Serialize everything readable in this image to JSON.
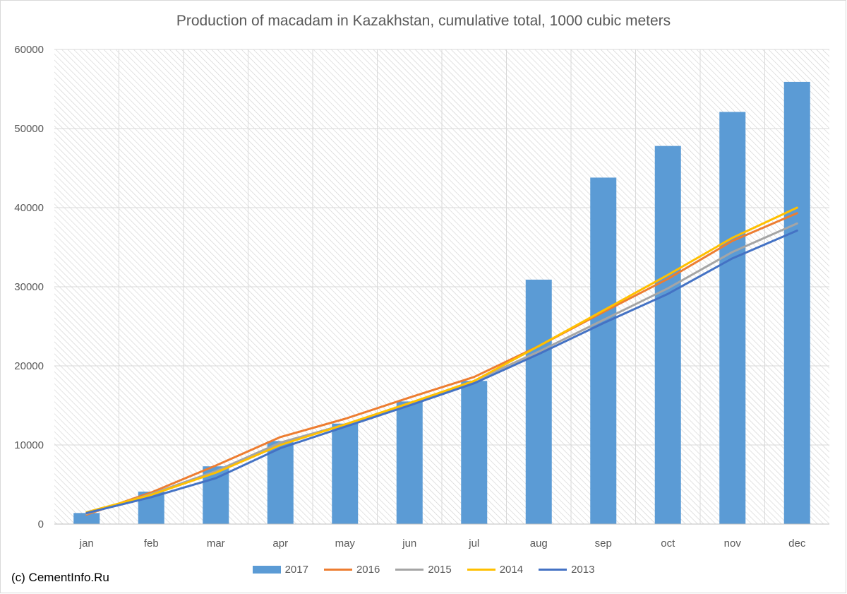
{
  "chart_data": {
    "type": "bar",
    "title": "Production of macadam in Kazakhstan, cumulative total, 1000 cubic meters",
    "categories": [
      "jan",
      "feb",
      "mar",
      "apr",
      "may",
      "jun",
      "jul",
      "aug",
      "sep",
      "oct",
      "nov",
      "dec"
    ],
    "ylim": [
      0,
      60000
    ],
    "yticks": [
      0,
      10000,
      20000,
      30000,
      40000,
      50000,
      60000
    ],
    "ytick_labels": [
      "0",
      "10000",
      "20000",
      "30000",
      "40000",
      "50000",
      "60000"
    ],
    "grid": true,
    "legend_position": "bottom",
    "bar_series": {
      "name": "2017",
      "color": "#5b9bd5",
      "values": [
        1400,
        4100,
        7300,
        10500,
        12700,
        15500,
        18100,
        30900,
        43800,
        47800,
        52100,
        55900
      ]
    },
    "line_series": [
      {
        "name": "2016",
        "color": "#ed7d31",
        "values": [
          1200,
          4000,
          7400,
          11000,
          13300,
          16000,
          18600,
          22500,
          26800,
          31000,
          35800,
          39300
        ]
      },
      {
        "name": "2015",
        "color": "#a5a5a5",
        "values": [
          1300,
          3800,
          6700,
          10300,
          12600,
          15200,
          18100,
          21800,
          25800,
          29800,
          34400,
          38000
        ]
      },
      {
        "name": "2014",
        "color": "#ffc000",
        "values": [
          1500,
          3700,
          6500,
          10000,
          12600,
          15300,
          18100,
          22500,
          27000,
          31500,
          36200,
          40000
        ]
      },
      {
        "name": "2013",
        "color": "#4472c4",
        "values": [
          1400,
          3400,
          5800,
          9600,
          12300,
          15000,
          17800,
          21500,
          25400,
          29100,
          33600,
          37100
        ]
      }
    ]
  },
  "copyright": "(c) CementInfo.Ru"
}
